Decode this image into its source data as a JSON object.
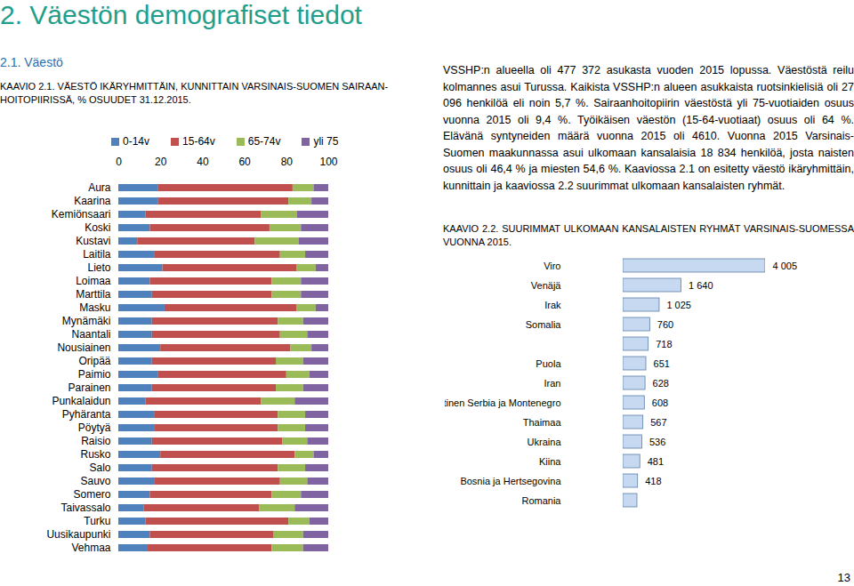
{
  "document": {
    "heading": "2. Väestön demografiset tiedot",
    "section": "2.1. Väestö",
    "paragraph": "VSSHP:n alueella oli 477 372 asukasta vuoden 2015 lopussa. Väestöstä reilu kolmannes asui Turussa. Kaikista VSSHP:n alueen asukkaista ruotsinkielisiä oli 27 096 henkilöä eli noin 5,7 %. Sairaanhoitopiirin väestöstä yli 75-vuotiaiden osuus vuonna 2015 oli 9,4 %. Työikäisen väestön (15-64-vuotiaat) osuus oli 64 %. Elävänä syntyneiden määrä vuonna 2015 oli 4610. Vuonna 2015 Varsinais-Suomen maakunnassa asui ulkomaan kansalaisia 18 834 henkilöä, josta naisten osuus oli 46,4 % ja miesten 54,6 %. Kaaviossa 2.1 on esitetty väestö ikäryhmittäin, kunnittain ja kaaviossa 2.2 suurimmat ulkomaan kansalaisten ryhmät.",
    "page_number": "13"
  },
  "chart_data": [
    {
      "type": "bar",
      "orientation": "horizontal",
      "stacked": true,
      "legend": "top",
      "title": "KAAVIO 2.1. VÄESTÖ IKÄRYHMITTÄIN, KUNNITTAIN VARSINAIS-SUOMEN SAIRAAN-HOITOPIIRISSÄ, % OSUUDET 31.12.2015.",
      "categories": [
        "Aura",
        "Kaarina",
        "Kemiönsaari",
        "Koski",
        "Kustavi",
        "Laitila",
        "Lieto",
        "Loimaa",
        "Marttila",
        "Masku",
        "Mynämäki",
        "Naantali",
        "Nousiainen",
        "Oripää",
        "Paimio",
        "Parainen",
        "Punkalaidun",
        "Pyhäranta",
        "Pöytyä",
        "Raisio",
        "Rusko",
        "Salo",
        "Sauvo",
        "Somero",
        "Taivassalo",
        "Turku",
        "Uusikaupunki",
        "Vehmaa"
      ],
      "series": [
        {
          "name": "0-14v",
          "color": "#4f81bd",
          "values": [
            19,
            19,
            13,
            15,
            9,
            17,
            21,
            15,
            16,
            22,
            16,
            16,
            20,
            16,
            19,
            16,
            13,
            17,
            17,
            16,
            20,
            16,
            17,
            15,
            12,
            13,
            15,
            14
          ]
        },
        {
          "name": "15-64v",
          "color": "#c0504d",
          "values": [
            64,
            62,
            55,
            57,
            56,
            60,
            64,
            58,
            57,
            63,
            60,
            61,
            62,
            59,
            61,
            59,
            55,
            59,
            59,
            62,
            64,
            60,
            60,
            58,
            55,
            68,
            59,
            59
          ]
        },
        {
          "name": "65-74v",
          "color": "#9bbb59",
          "values": [
            10,
            11,
            17,
            15,
            21,
            12,
            9,
            14,
            14,
            9,
            12,
            13,
            10,
            13,
            11,
            13,
            16,
            13,
            13,
            12,
            9,
            13,
            13,
            14,
            17,
            10,
            14,
            15
          ]
        },
        {
          "name": "yli 75",
          "color": "#8064a2",
          "values": [
            7,
            8,
            15,
            13,
            14,
            11,
            6,
            13,
            13,
            6,
            12,
            10,
            8,
            12,
            9,
            12,
            16,
            11,
            11,
            10,
            7,
            11,
            10,
            13,
            16,
            9,
            12,
            12
          ]
        }
      ],
      "xlim": [
        0,
        100
      ],
      "xticks": [
        0,
        20,
        40,
        60,
        80,
        100
      ],
      "grid": false
    },
    {
      "type": "bar",
      "orientation": "horizontal",
      "data_labels": true,
      "tick_labels": "y",
      "title": "KAAVIO 2.2. SUURIMMAT ULKOMAAN KANSALAISTEN RYHMÄT VARSINAIS-SUOMESSA VUONNA 2015.",
      "categories": [
        "Viro",
        "Venäjä",
        "Irak",
        "Somalia",
        null,
        "Puola",
        "Iran",
        "Entinen Serbia ja Montenegro",
        "Thaimaa",
        "Ukraina",
        "Kiina",
        "Bosnia ja Hertsegovina",
        "Romania"
      ],
      "values": [
        4005,
        1640,
        1025,
        760,
        718,
        651,
        628,
        608,
        567,
        536,
        481,
        418,
        400
      ],
      "value_labels": [
        "4 005",
        "1 640",
        "1 025",
        "760",
        "718",
        "651",
        "628",
        "608",
        "567",
        "536",
        "481",
        "418",
        null
      ],
      "color": "#c6d9f1"
    }
  ]
}
